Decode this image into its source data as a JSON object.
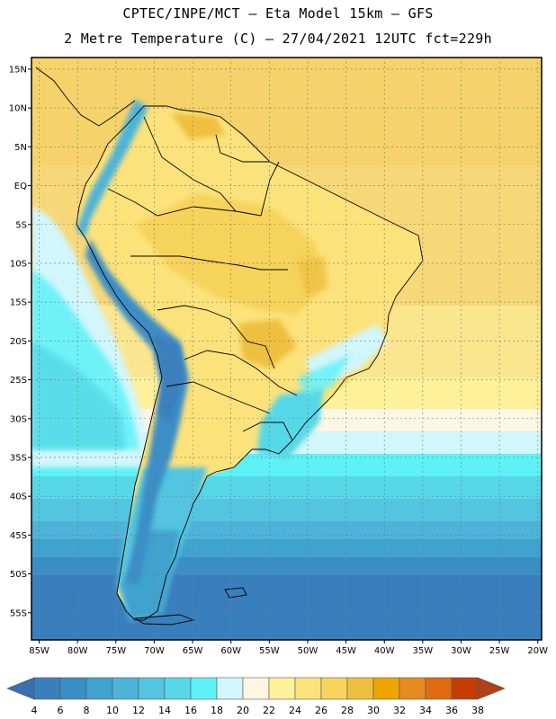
{
  "header": {
    "line1": "CPTEC/INPE/MCT –  Eta Model 15km – GFS",
    "line2": "2 Metre Temperature (C) – 27/04/2021 12UTC fct=229h"
  },
  "map": {
    "lon_range": [
      -86,
      -19.5
    ],
    "lat_range": [
      -58.5,
      16.5
    ],
    "lat_ticks": [
      {
        "value": 15,
        "label": "15N"
      },
      {
        "value": 10,
        "label": "10N"
      },
      {
        "value": 5,
        "label": "5N"
      },
      {
        "value": 0,
        "label": "EQ"
      },
      {
        "value": -5,
        "label": "5S"
      },
      {
        "value": -10,
        "label": "10S"
      },
      {
        "value": -15,
        "label": "15S"
      },
      {
        "value": -20,
        "label": "20S"
      },
      {
        "value": -25,
        "label": "25S"
      },
      {
        "value": -30,
        "label": "30S"
      },
      {
        "value": -35,
        "label": "35S"
      },
      {
        "value": -40,
        "label": "40S"
      },
      {
        "value": -45,
        "label": "45S"
      },
      {
        "value": -50,
        "label": "50S"
      },
      {
        "value": -55,
        "label": "55S"
      }
    ],
    "lon_ticks": [
      {
        "value": -85,
        "label": "85W"
      },
      {
        "value": -80,
        "label": "80W"
      },
      {
        "value": -75,
        "label": "75W"
      },
      {
        "value": -70,
        "label": "70W"
      },
      {
        "value": -65,
        "label": "65W"
      },
      {
        "value": -60,
        "label": "60W"
      },
      {
        "value": -55,
        "label": "55W"
      },
      {
        "value": -50,
        "label": "50W"
      },
      {
        "value": -45,
        "label": "45W"
      },
      {
        "value": -40,
        "label": "40W"
      },
      {
        "value": -35,
        "label": "35W"
      },
      {
        "value": -30,
        "label": "30W"
      },
      {
        "value": -25,
        "label": "25W"
      },
      {
        "value": -20,
        "label": "20W"
      }
    ],
    "grid": true
  },
  "colorbar": {
    "labels": [
      "4",
      "6",
      "8",
      "10",
      "12",
      "14",
      "16",
      "18",
      "20",
      "22",
      "24",
      "26",
      "28",
      "30",
      "32",
      "34",
      "36",
      "38"
    ],
    "colors": [
      "#3a7fbd",
      "#3a8ec6",
      "#40a2ce",
      "#4db4d9",
      "#53c5e0",
      "#57d8e8",
      "#5ef2f7",
      "#d1f6fb",
      "#fdf6e3",
      "#fff199",
      "#fce27b",
      "#f6d35a",
      "#efc03f",
      "#efa500",
      "#e78a1f",
      "#e06a10",
      "#c43e04"
    ],
    "below_color": "#3b6fb0",
    "above_color": "#b1401a"
  }
}
